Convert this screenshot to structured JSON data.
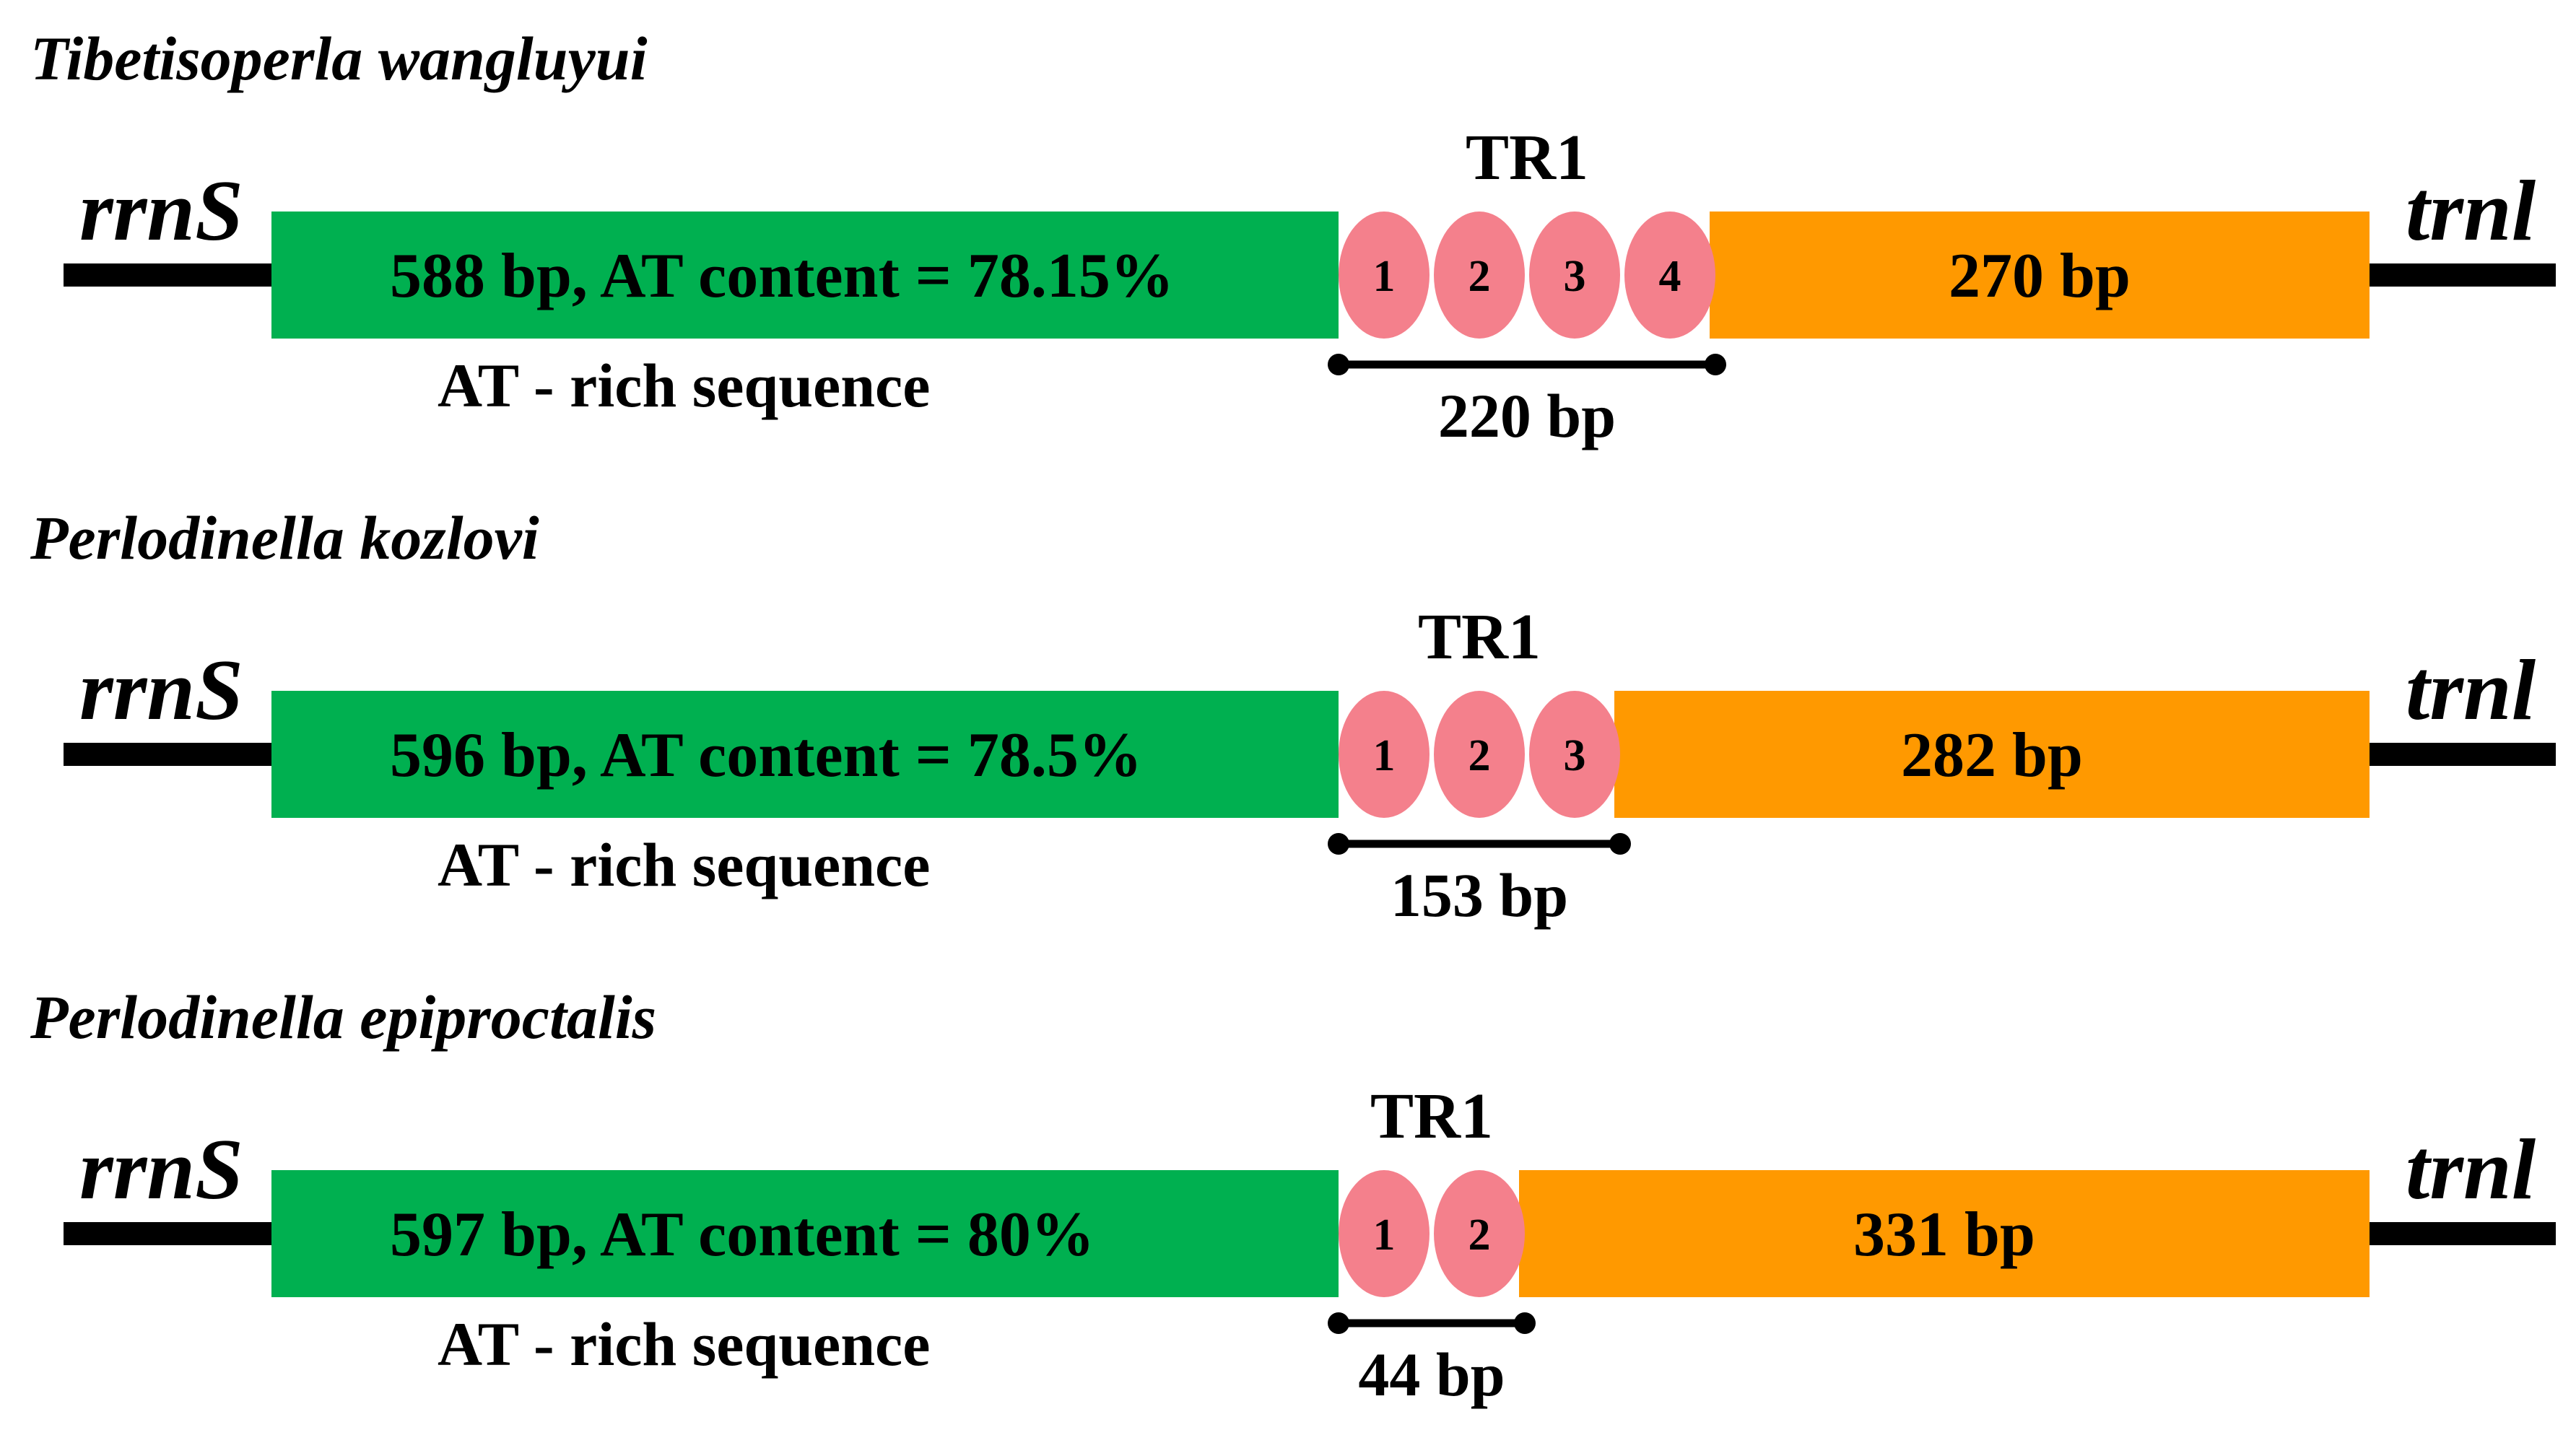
{
  "colors": {
    "at_rich": "#00b050",
    "tail": "#ff9900",
    "repeat": "#f4808c",
    "line": "#000000"
  },
  "left_gene": "rrnS",
  "right_gene": "trnl",
  "region_label": "AT - rich sequence",
  "repeat_label": "TR1",
  "rows": [
    {
      "species": "Tibetisoperla wangluyui",
      "at_text": "588 bp, AT content = 78.15%",
      "repeats": [
        "1",
        "2",
        "3",
        "4"
      ],
      "repeat_bp": "220 bp",
      "tail_text": "270 bp"
    },
    {
      "species": "Perlodinella kozlovi",
      "at_text": "596 bp, AT content = 78.5%",
      "repeats": [
        "1",
        "2",
        "3"
      ],
      "repeat_bp": "153 bp",
      "tail_text": "282 bp"
    },
    {
      "species": "Perlodinella epiproctalis",
      "at_text": "597 bp, AT content = 80%",
      "repeats": [
        "1",
        "2"
      ],
      "repeat_bp": "44 bp",
      "tail_text": "331 bp"
    }
  ]
}
